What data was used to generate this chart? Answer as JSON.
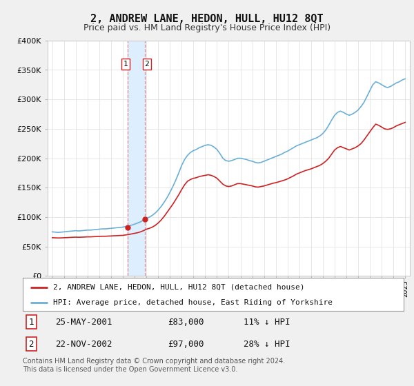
{
  "title": "2, ANDREW LANE, HEDON, HULL, HU12 8QT",
  "subtitle": "Price paid vs. HM Land Registry's House Price Index (HPI)",
  "legend_line1": "2, ANDREW LANE, HEDON, HULL, HU12 8QT (detached house)",
  "legend_line2": "HPI: Average price, detached house, East Riding of Yorkshire",
  "transaction1_date": "25-MAY-2001",
  "transaction1_price": "£83,000",
  "transaction1_hpi": "11% ↓ HPI",
  "transaction2_date": "22-NOV-2002",
  "transaction2_price": "£97,000",
  "transaction2_hpi": "28% ↓ HPI",
  "footer": "Contains HM Land Registry data © Crown copyright and database right 2024.\nThis data is licensed under the Open Government Licence v3.0.",
  "hpi_color": "#6aafd6",
  "price_color": "#cc2222",
  "vline_color": "#dd8888",
  "vspan_color": "#ddeeff",
  "marker_color": "#cc2222",
  "background": "#f0f0f0",
  "plot_background": "#ffffff",
  "legend_background": "#ffffff",
  "t1_year": 2001.38,
  "t2_year": 2002.88,
  "t1_price": 83000,
  "t2_price": 97000,
  "ylim_max": 400000,
  "yticks": [
    0,
    50000,
    100000,
    150000,
    200000,
    250000,
    300000,
    350000,
    400000
  ],
  "xstart": 1995,
  "xend": 2025,
  "hpi_data": [
    75000,
    74500,
    74000,
    74500,
    75000,
    75500,
    76000,
    76500,
    77000,
    76500,
    77000,
    77500,
    78000,
    78000,
    78500,
    79000,
    79500,
    80000,
    80000,
    80500,
    81000,
    81500,
    82000,
    82500,
    83000,
    84000,
    85000,
    86500,
    88000,
    90000,
    92000,
    95000,
    98000,
    100000,
    103000,
    107000,
    112000,
    118000,
    125000,
    133000,
    142000,
    152000,
    163000,
    175000,
    188000,
    198000,
    205000,
    210000,
    213000,
    215000,
    218000,
    220000,
    222000,
    223000,
    222000,
    219000,
    215000,
    208000,
    200000,
    196000,
    195000,
    196000,
    198000,
    200000,
    200000,
    199000,
    198000,
    196000,
    195000,
    193000,
    192000,
    193000,
    195000,
    197000,
    199000,
    201000,
    203000,
    205000,
    207000,
    210000,
    212000,
    215000,
    218000,
    221000,
    223000,
    225000,
    227000,
    229000,
    231000,
    233000,
    235000,
    238000,
    242000,
    248000,
    256000,
    265000,
    273000,
    278000,
    280000,
    278000,
    275000,
    273000,
    275000,
    278000,
    282000,
    288000,
    295000,
    305000,
    315000,
    325000,
    330000,
    328000,
    325000,
    322000,
    320000,
    322000,
    325000,
    328000,
    330000,
    333000,
    335000
  ],
  "price_data": [
    65000,
    64800,
    64600,
    64700,
    65000,
    65200,
    65500,
    65800,
    66000,
    65800,
    66000,
    66200,
    66500,
    66500,
    66800,
    67000,
    67300,
    67500,
    67500,
    67800,
    68000,
    68300,
    68500,
    68800,
    69000,
    69800,
    70500,
    71500,
    72500,
    73500,
    75000,
    77000,
    79500,
    81000,
    83000,
    86000,
    90000,
    95000,
    101000,
    108000,
    115000,
    122000,
    130000,
    138000,
    147000,
    155000,
    161000,
    164000,
    166000,
    167000,
    169000,
    170000,
    171000,
    172000,
    171000,
    169000,
    166000,
    161000,
    156000,
    153000,
    152000,
    153000,
    155000,
    157000,
    157000,
    156000,
    155000,
    154000,
    153000,
    151500,
    151000,
    152000,
    153000,
    154500,
    156000,
    157500,
    158500,
    160000,
    161500,
    163000,
    165000,
    167500,
    170000,
    173000,
    175000,
    177000,
    179000,
    180500,
    182000,
    184000,
    186000,
    188000,
    191000,
    195000,
    200000,
    207000,
    214000,
    218000,
    220000,
    218000,
    216000,
    214000,
    216000,
    218000,
    221000,
    225000,
    231000,
    238000,
    245000,
    252000,
    258000,
    256000,
    253000,
    250000,
    249000,
    250000,
    252000,
    255000,
    257000,
    259000,
    261000
  ]
}
